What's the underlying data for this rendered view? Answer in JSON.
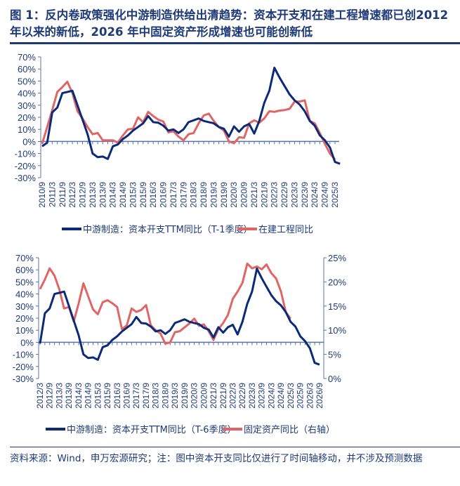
{
  "title": "图 1：反内卷政策强化中游制造供给出清趋势：资本开支和在建工程增速都已创2012 年以来的新低，2026 年中固定资产形成增速也可能创新低",
  "footer": "资料来源：Wind，申万宏源研究；注：图中资本开支同比仅进行了时间轴移动，并不涉及预测数据",
  "colors": {
    "blue": "#0d2a78",
    "red": "#e06666",
    "axis": "#5a74a8",
    "text": "#1f3a78"
  },
  "chart_data": [
    {
      "type": "line",
      "x_start": "2010/9",
      "frequency": "quarterly",
      "xticks": [
        "2010/9",
        "2011/3",
        "2011/9",
        "2012/3",
        "2012/9",
        "2013/3",
        "2013/9",
        "2014/3",
        "2014/9",
        "2015/3",
        "2015/9",
        "2016/3",
        "2016/9",
        "2017/3",
        "2017/9",
        "2018/3",
        "2018/9",
        "2019/3",
        "2019/9",
        "2020/3",
        "2020/9",
        "2021/3",
        "2021/9",
        "2022/3",
        "2022/9",
        "2023/3",
        "2023/9",
        "2024/3",
        "2024/9",
        "2025/3"
      ],
      "ylim": [
        -30,
        70
      ],
      "yticks": [
        "70%",
        "60%",
        "50%",
        "40%",
        "30%",
        "20%",
        "10%",
        "0%",
        "-10%",
        "-20%",
        "-30%"
      ],
      "legend": "bottom",
      "series": [
        {
          "name": "中游制造：资本开支TTM同比（T-1季度）",
          "color": "#0d2a78",
          "values": [
            -4,
            -1,
            24,
            28,
            40,
            41,
            42,
            30,
            18,
            6,
            -10,
            -13,
            -12.5,
            -14.5,
            -4,
            -2.5,
            2,
            5,
            9,
            12,
            15,
            21,
            16,
            15.5,
            13,
            9,
            10,
            7,
            10,
            16,
            17.5,
            19,
            17,
            16,
            15,
            12,
            10.5,
            4,
            12.5,
            8,
            12.5,
            14.5,
            6.5,
            17,
            32,
            42,
            61,
            53,
            46,
            39,
            34,
            30.5,
            25,
            17,
            13,
            5,
            1,
            -5,
            -17,
            -18.5
          ]
        },
        {
          "name": "在建工程同比",
          "color": "#e06666",
          "values": [
            -2,
            12,
            26,
            41,
            45,
            49.5,
            40,
            25,
            19,
            12,
            6,
            7,
            1,
            1,
            1,
            -1,
            5,
            10,
            10.5,
            20,
            16,
            24.5,
            21,
            18,
            16.5,
            7.5,
            8.5,
            4,
            1,
            6,
            7,
            15,
            21.5,
            23,
            17,
            12,
            9,
            0,
            -1.5,
            3.5,
            3,
            15,
            17.5,
            15.5,
            19,
            25,
            24.5,
            25.5,
            26,
            27,
            33,
            33,
            34,
            17,
            15,
            7,
            -2,
            -10,
            -15
          ]
        }
      ]
    },
    {
      "type": "line",
      "x_start": "2012/3",
      "frequency": "quarterly",
      "xticks": [
        "2012/3",
        "2012/9",
        "2013/3",
        "2013/9",
        "2014/3",
        "2014/9",
        "2015/3",
        "2015/9",
        "2016/3",
        "2016/9",
        "2017/3",
        "2017/9",
        "2018/3",
        "2018/9",
        "2019/3",
        "2019/9",
        "2020/3",
        "2020/9",
        "2021/3",
        "2021/9",
        "2022/3",
        "2022/9",
        "2023/3",
        "2023/9",
        "2024/3",
        "2024/9",
        "2025/3",
        "2025/9",
        "2026/3",
        "2026/9"
      ],
      "ylim": [
        -30,
        70
      ],
      "yticks": [
        "70%",
        "60%",
        "50%",
        "40%",
        "30%",
        "20%",
        "10%",
        "0%",
        "-10%",
        "-20%",
        "-30%"
      ],
      "y2lim": [
        0,
        25
      ],
      "y2ticks": [
        "25%",
        "20%",
        "15%",
        "10%",
        "5%",
        "0%"
      ],
      "legend": "bottom",
      "series": [
        {
          "name": "中游制造：资本开支TTM同比（T-6季度）",
          "color": "#0d2a78",
          "axis": "left",
          "values": [
            -1,
            24,
            28,
            40,
            41,
            42,
            30,
            18,
            6,
            -10,
            -13,
            -12.5,
            -14.5,
            -4,
            -2.5,
            2,
            5,
            9,
            12,
            15,
            21,
            16,
            15.5,
            13,
            9,
            10,
            7,
            10,
            16,
            17.5,
            19,
            17,
            16,
            15,
            12,
            10.5,
            4,
            12.5,
            8,
            12.5,
            14.5,
            6.5,
            17,
            32,
            42,
            61,
            53,
            46,
            39,
            34,
            30.5,
            25,
            17,
            13,
            5,
            1,
            -5,
            -17,
            -18.5
          ]
        },
        {
          "name": "固定资产同比（右轴）",
          "color": "#e06666",
          "axis": "right",
          "values": [
            18.5,
            20.5,
            22.8,
            21.3,
            18.5,
            14.5,
            14.8,
            11.8,
            15.5,
            19.7,
            17,
            14.3,
            13.3,
            15.8,
            16.2,
            15.6,
            14.8,
            10.2,
            11,
            14.5,
            13.8,
            14.2,
            15.2,
            11,
            10,
            9.3,
            7.2,
            7.5,
            9.6,
            9.8,
            10.6,
            11.4,
            12.4,
            10.9,
            11.2,
            9.8,
            8,
            10.2,
            11.5,
            13.2,
            16.5,
            18,
            19.8,
            23.8,
            22.8,
            23.2,
            22.6,
            23.6,
            21.8,
            20.7,
            18,
            13.7,
            12.4
          ]
        }
      ]
    }
  ]
}
